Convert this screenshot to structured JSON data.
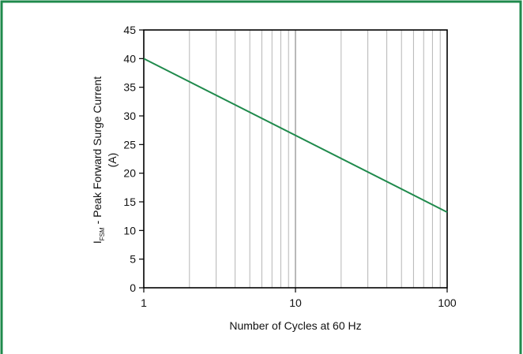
{
  "chart_data": {
    "type": "line",
    "title": "",
    "xlabel": "Number of Cycles at 60 Hz",
    "ylabel_main": "I",
    "ylabel_sub": "FSM",
    "ylabel_rest": " - Peak Forward Surge Current",
    "ylabel_unit": "(A)",
    "x_scale": "log",
    "xlim": [
      1,
      100
    ],
    "ylim": [
      0,
      45
    ],
    "x_ticks": [
      1,
      10,
      100
    ],
    "x_tick_labels": [
      "1",
      "10",
      "100"
    ],
    "y_ticks": [
      0,
      5,
      10,
      15,
      20,
      25,
      30,
      35,
      40,
      45
    ],
    "y_tick_labels": [
      "0",
      "5",
      "10",
      "15",
      "20",
      "25",
      "30",
      "35",
      "40",
      "45"
    ],
    "grid": true,
    "series": [
      {
        "x": [
          1,
          100
        ],
        "y": [
          40,
          13.2
        ]
      }
    ]
  },
  "colors": {
    "frame": "#1f8a4c",
    "line": "#1f8a4c",
    "grid": "#b5b5b5",
    "axes": "#000000"
  }
}
